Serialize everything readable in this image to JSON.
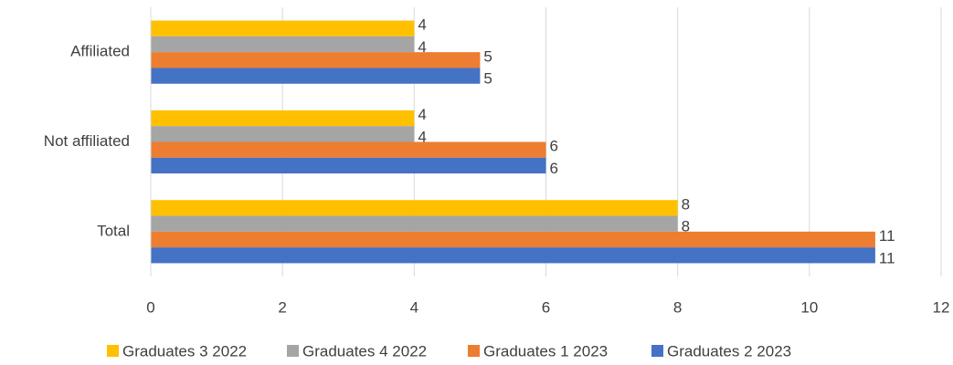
{
  "chart_data": {
    "type": "bar",
    "orientation": "horizontal",
    "categories": [
      "Affiliated",
      "Not affiliated",
      "Total"
    ],
    "series": [
      {
        "name": "Graduates 3 2022",
        "color": "#ffc000",
        "values": [
          4,
          4,
          8
        ]
      },
      {
        "name": "Graduates 4 2022",
        "color": "#a5a5a5",
        "values": [
          4,
          4,
          8
        ]
      },
      {
        "name": "Graduates 1 2023",
        "color": "#ed7d31",
        "values": [
          5,
          6,
          11
        ]
      },
      {
        "name": "Graduates 2 2023",
        "color": "#4472c4",
        "values": [
          5,
          6,
          11
        ]
      }
    ],
    "xlim": [
      0,
      12
    ],
    "xticks": [
      0,
      2,
      4,
      6,
      8,
      10,
      12
    ],
    "grid": true,
    "legend": "bottom"
  }
}
